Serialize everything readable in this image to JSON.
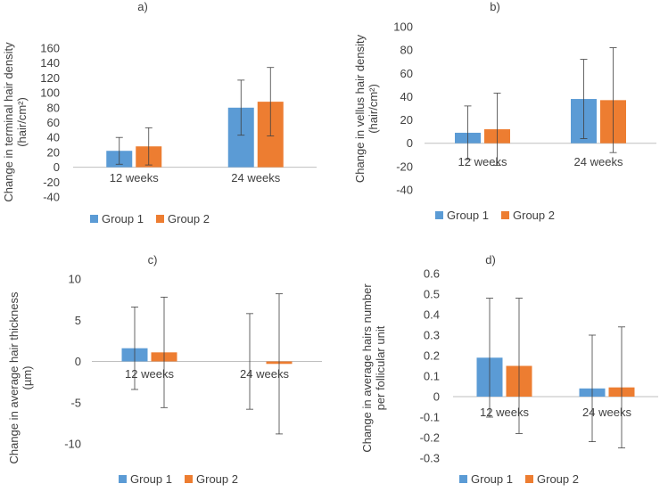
{
  "colors": {
    "group1": "#5b9bd5",
    "group2": "#ed7d31",
    "axis": "#bfbfbf",
    "errorbar": "#404040",
    "text": "#404040"
  },
  "chart_data": [
    {
      "type": "bar",
      "panel": "a)",
      "title": "a)",
      "ylabel_lines": [
        "Change in terminal hair density",
        "(hair/cm²)"
      ],
      "categories": [
        "12 weeks",
        "24 weeks"
      ],
      "series": [
        {
          "name": "Group 1",
          "values": [
            22,
            80
          ],
          "errors": [
            18,
            37
          ]
        },
        {
          "name": "Group 2",
          "values": [
            28,
            88
          ],
          "errors": [
            25,
            46
          ]
        }
      ],
      "ylim": [
        -40,
        160
      ],
      "yticks": [
        -40,
        -20,
        0,
        20,
        40,
        60,
        80,
        100,
        120,
        140,
        160
      ],
      "ytick_labels": [
        "-40",
        "-20",
        "0",
        "20",
        "40",
        "60",
        "80",
        "100",
        "120",
        "140",
        "160"
      ],
      "legend": [
        "Group 1",
        "Group 2"
      ],
      "legend_position": "bottom",
      "category_label_position": "bottom"
    },
    {
      "type": "bar",
      "panel": "b)",
      "title": "b)",
      "ylabel_lines": [
        "Change in vellus hair density",
        "(hair/cm²)"
      ],
      "categories": [
        "12 weeks",
        "24 weeks"
      ],
      "series": [
        {
          "name": "Group 1",
          "values": [
            9,
            38
          ],
          "errors": [
            23,
            34
          ]
        },
        {
          "name": "Group 2",
          "values": [
            12,
            37
          ],
          "errors": [
            31,
            45
          ]
        }
      ],
      "ylim": [
        -40,
        100
      ],
      "yticks": [
        -40,
        -20,
        0,
        20,
        40,
        60,
        80,
        100
      ],
      "ytick_labels": [
        "-40",
        "-20",
        "0",
        "20",
        "40",
        "60",
        "80",
        "100"
      ],
      "legend": [
        "Group 1",
        "Group 2"
      ],
      "legend_position": "bottom",
      "category_label_position": "axis"
    },
    {
      "type": "bar",
      "panel": "c)",
      "title": "c)",
      "ylabel_lines": [
        "Change in average hair thickness",
        "(µm)"
      ],
      "categories": [
        "12 weeks",
        "24 weeks"
      ],
      "series": [
        {
          "name": "Group 1",
          "values": [
            1.6,
            0.0
          ],
          "errors": [
            5.0,
            5.8
          ]
        },
        {
          "name": "Group 2",
          "values": [
            1.1,
            -0.3
          ],
          "errors": [
            6.7,
            8.5
          ]
        }
      ],
      "ylim": [
        -10,
        10
      ],
      "yticks": [
        -10,
        -5,
        0,
        5,
        10
      ],
      "ytick_labels": [
        "-10",
        "-5",
        "0",
        "5",
        "10"
      ],
      "legend": [
        "Group 1",
        "Group 2"
      ],
      "legend_position": "bottom",
      "category_label_position": "axis"
    },
    {
      "type": "bar",
      "panel": "d)",
      "title": "d)",
      "ylabel_lines": [
        "Change in average hairs number",
        "per follicular unit"
      ],
      "categories": [
        "12 weeks",
        "24 weeks"
      ],
      "series": [
        {
          "name": "Group 1",
          "values": [
            0.19,
            0.04
          ],
          "errors": [
            0.29,
            0.26
          ]
        },
        {
          "name": "Group 2",
          "values": [
            0.15,
            0.045
          ],
          "errors": [
            0.33,
            0.295
          ]
        }
      ],
      "ylim": [
        -0.3,
        0.6
      ],
      "yticks": [
        -0.3,
        -0.2,
        -0.1,
        0,
        0.1,
        0.2,
        0.3,
        0.4,
        0.5,
        0.6
      ],
      "ytick_labels": [
        "-0.3",
        "-0.2",
        "-0.1",
        "0",
        "0.1",
        "0.2",
        "0.3",
        "0.4",
        "0.5",
        "0.6"
      ],
      "legend": [
        "Group 1",
        "Group 2"
      ],
      "legend_position": "bottom",
      "category_label_position": "axis"
    }
  ]
}
